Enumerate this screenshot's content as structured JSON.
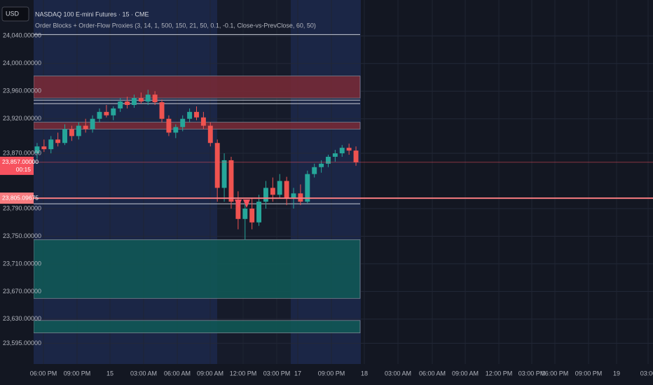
{
  "chart_data": {
    "type": "candlestick",
    "currency": "USD",
    "title": "NASDAQ 100 E-mini Futures · 15 · CME",
    "subtitle": "Order Blocks + Order-Flow Proxies (3, 14, 1, 500, 150, 21, 50, 0.1, -0.1, Close-vs-PrevClose, 60, 50)",
    "up_color": "#26a69a",
    "down_color": "#ef5350",
    "open": [
      23870,
      23880,
      23876,
      23890,
      23885,
      23905,
      23895,
      23910,
      23905,
      23920,
      23930,
      23925,
      23935,
      23945,
      23940,
      23950,
      23945,
      23955,
      23944,
      23920,
      23900,
      23908,
      23920,
      23930,
      23922,
      23910,
      23885,
      23820,
      23860,
      23800,
      23775,
      23790,
      23770,
      23800,
      23820,
      23810,
      23830,
      23805,
      23812,
      23800,
      23840,
      23850,
      23855,
      23865,
      23870,
      23878,
      23874
    ],
    "high": [
      23885,
      23890,
      23895,
      23900,
      23912,
      23910,
      23915,
      23920,
      23925,
      23935,
      23940,
      23938,
      23950,
      23952,
      23955,
      23958,
      23962,
      23960,
      23948,
      23925,
      23912,
      23925,
      23935,
      23938,
      23930,
      23915,
      23890,
      23870,
      23865,
      23815,
      23800,
      23805,
      23810,
      23830,
      23835,
      23840,
      23836,
      23820,
      23825,
      23845,
      23855,
      23860,
      23868,
      23875,
      23882,
      23884,
      23880
    ],
    "low": [
      23862,
      23872,
      23870,
      23880,
      23882,
      23888,
      23890,
      23900,
      23900,
      23915,
      23922,
      23918,
      23930,
      23935,
      23936,
      23942,
      23940,
      23940,
      23915,
      23895,
      23892,
      23902,
      23915,
      23918,
      23905,
      23880,
      23800,
      23800,
      23790,
      23760,
      23745,
      23760,
      23765,
      23790,
      23800,
      23805,
      23795,
      23790,
      23795,
      23798,
      23835,
      23842,
      23850,
      23858,
      23865,
      23868,
      23852
    ],
    "close": [
      23880,
      23876,
      23890,
      23885,
      23905,
      23895,
      23910,
      23905,
      23920,
      23930,
      23925,
      23935,
      23945,
      23940,
      23950,
      23945,
      23955,
      23944,
      23920,
      23900,
      23908,
      23920,
      23930,
      23922,
      23910,
      23885,
      23820,
      23860,
      23800,
      23775,
      23790,
      23770,
      23800,
      23820,
      23810,
      23830,
      23805,
      23812,
      23800,
      23840,
      23850,
      23855,
      23865,
      23870,
      23878,
      23874,
      23857
    ],
    "ylim": [
      23565,
      24092
    ],
    "yticks": [
      {
        "value": 24040,
        "label": "24,040.00000"
      },
      {
        "value": 24000,
        "label": "24,000.00000"
      },
      {
        "value": 23960,
        "label": "23,960.00000"
      },
      {
        "value": 23920,
        "label": "23,920.00000"
      },
      {
        "value": 23870,
        "label": "23,870.00000"
      },
      {
        "value": 23790,
        "label": "23,790.00000"
      },
      {
        "value": 23750,
        "label": "23,750.00000"
      },
      {
        "value": 23710,
        "label": "23,710.00000"
      },
      {
        "value": 23670,
        "label": "23,670.00000"
      },
      {
        "value": 23630,
        "label": "23,630.00000"
      },
      {
        "value": 23595,
        "label": "23,595.00000"
      }
    ],
    "xticks": [
      "06:00 PM",
      "09:00 PM",
      "15",
      "03:00 AM",
      "06:00 AM",
      "09:00 AM",
      "12:00 PM",
      "03:00 PM",
      "17",
      "09:00 PM",
      "18",
      "03:00 AM",
      "06:00 AM",
      "09:00 AM",
      "12:00 PM",
      "03:00 PM",
      "06:00 PM",
      "09:00 PM",
      "19",
      "03:00"
    ],
    "zones": [
      {
        "from": 23950,
        "to": 23982,
        "color": "#7a2a36"
      },
      {
        "from": 23905,
        "to": 23915,
        "color": "#7a2a36"
      },
      {
        "from": 23660,
        "to": 23745,
        "color": "#0f5a57"
      },
      {
        "from": 23610,
        "to": 23628,
        "color": "#0f5a57"
      }
    ],
    "levels": [
      {
        "value": 24042,
        "color": "#c8ccd6"
      },
      {
        "value": 23947,
        "color": "#c8ccd6"
      },
      {
        "value": 23942,
        "color": "#c8ccd6"
      },
      {
        "value": 23797,
        "color": "#c8ccd6"
      }
    ],
    "price_tags": [
      {
        "value": 23857,
        "label": "23,857.00000",
        "countdown": "00:15",
        "color": "#f7525f"
      },
      {
        "value": 23805.09675,
        "label": "23,805.09675",
        "color": "#f77c80"
      }
    ]
  }
}
